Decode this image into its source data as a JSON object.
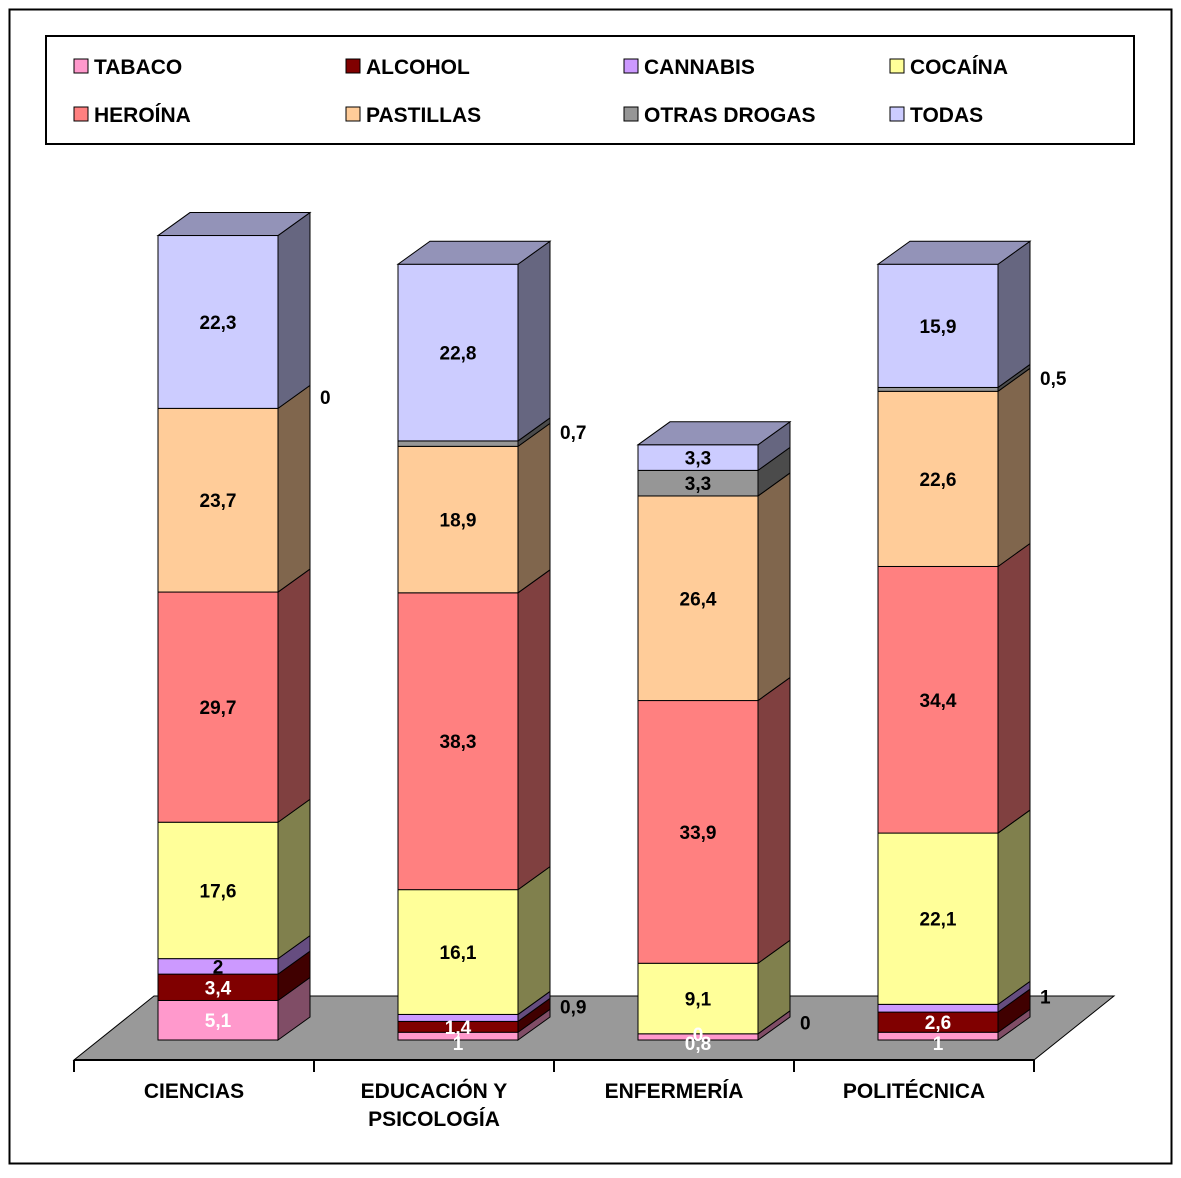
{
  "chart_data": {
    "type": "bar",
    "stacked": true,
    "three_d": true,
    "categories": [
      "CIENCIAS",
      "EDUCACIÓN Y PSICOLOGÍA",
      "ENFERMERÍA",
      "POLITÉCNICA"
    ],
    "category_lines": [
      [
        "CIENCIAS"
      ],
      [
        "EDUCACIÓN Y",
        "PSICOLOGÍA"
      ],
      [
        "ENFERMERÍA"
      ],
      [
        "POLITÉCNICA"
      ]
    ],
    "series": [
      {
        "name": "TABACO",
        "values": [
          5.1,
          1,
          0.8,
          1
        ],
        "labels": [
          "5,1",
          "1",
          "0,8",
          "1"
        ]
      },
      {
        "name": "ALCOHOL",
        "values": [
          3.4,
          1.4,
          0,
          2.6
        ],
        "labels": [
          "3,4",
          "1,4",
          "0",
          "2,6"
        ]
      },
      {
        "name": "CANNABIS",
        "values": [
          2,
          0.9,
          0,
          1
        ],
        "labels": [
          "2",
          "0,9",
          "0",
          "1"
        ]
      },
      {
        "name": "COCAÍNA",
        "values": [
          17.6,
          16.1,
          9.1,
          22.1
        ],
        "labels": [
          "17,6",
          "16,1",
          "9,1",
          "22,1"
        ]
      },
      {
        "name": "HEROÍNA",
        "values": [
          29.7,
          38.3,
          33.9,
          34.4
        ],
        "labels": [
          "29,7",
          "38,3",
          "33,9",
          "34,4"
        ]
      },
      {
        "name": "PASTILLAS",
        "values": [
          23.7,
          18.9,
          26.4,
          22.6
        ],
        "labels": [
          "23,7",
          "18,9",
          "26,4",
          "22,6"
        ]
      },
      {
        "name": "OTRAS DROGAS",
        "values": [
          0,
          0.7,
          3.3,
          0.5
        ],
        "labels": [
          "0",
          "0,7",
          "3,3",
          "0,5"
        ]
      },
      {
        "name": "TODAS",
        "values": [
          22.3,
          22.8,
          3.3,
          15.9
        ],
        "labels": [
          "22,3",
          "22,8",
          "3,3",
          "15,9"
        ]
      }
    ],
    "colors": {
      "TABACO": "#FF99CC",
      "ALCOHOL": "#800000",
      "CANNABIS": "#CC99FF",
      "COCAÍNA": "#FFFF99",
      "HEROÍNA": "#FF8080",
      "PASTILLAS": "#FFCC99",
      "OTRAS DROGAS": "#969696",
      "TODAS": "#CCCCFF"
    },
    "floor_color": "#999999",
    "ylim": [
      0,
      100
    ],
    "legend_position": "top",
    "grid": false
  }
}
